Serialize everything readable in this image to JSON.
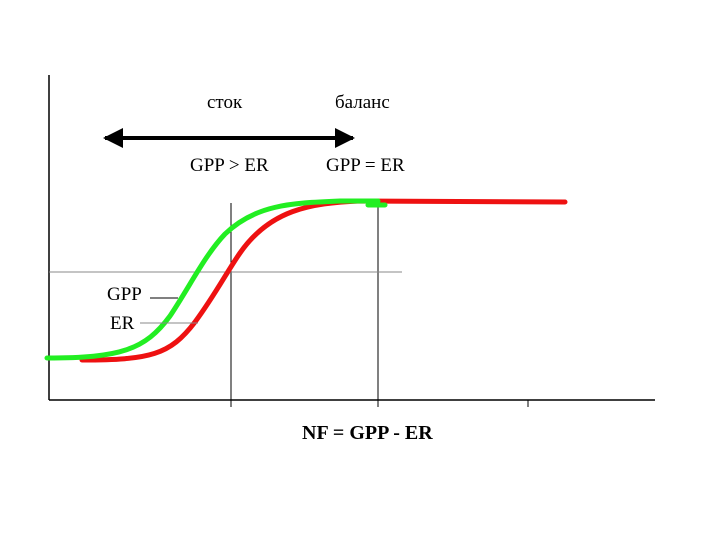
{
  "labels": {
    "sink": "сток",
    "balance": "баланс",
    "gpp_gt_er": "GPP > ER",
    "gpp_eq_er": "GPP = ER",
    "gpp": "GPP",
    "er": "ER",
    "x_axis": "NF = GPP - ER"
  },
  "colors": {
    "gpp_curve": "#22ee22",
    "er_curve": "#ee1111",
    "axis": "#000000",
    "guide_line": "#888888"
  }
}
